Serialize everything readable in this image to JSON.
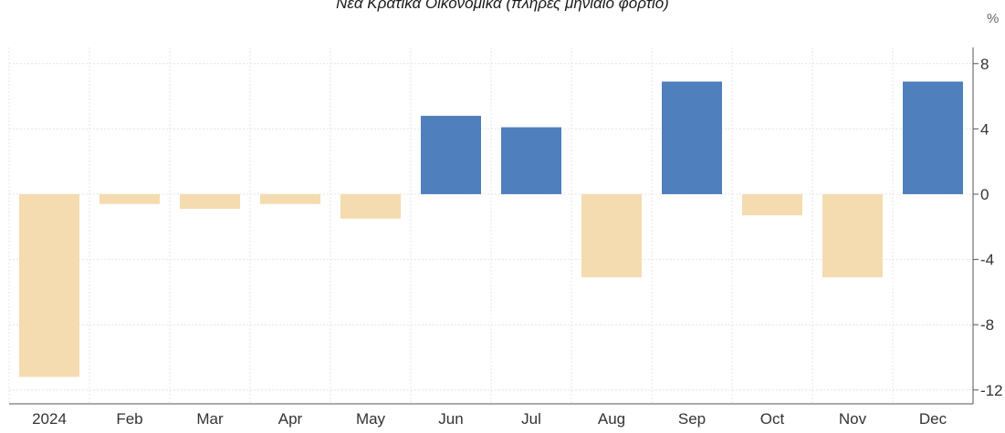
{
  "chart_data": {
    "type": "bar",
    "title": "Νέα Κρατικά Οικονομικά (πλήρες μηνιαίο φορτίο)",
    "unit": "%",
    "categories": [
      "2024",
      "Feb",
      "Mar",
      "Apr",
      "May",
      "Jun",
      "Jul",
      "Aug",
      "Sep",
      "Oct",
      "Nov",
      "Dec"
    ],
    "values": [
      -11.2,
      -0.6,
      -0.9,
      -0.6,
      -1.5,
      4.8,
      4.1,
      -5.1,
      6.9,
      -1.3,
      -5.1,
      6.9
    ],
    "xlabel": "",
    "ylabel": "",
    "ylim": [
      -12.8,
      8.8
    ],
    "yticks": [
      8,
      4,
      0,
      -4,
      -8,
      -12
    ],
    "grid": true,
    "colors": {
      "positive": "#4f7fbc",
      "negative": "#f4dcb0",
      "grid": "#e4e4e4",
      "axis": "#555555"
    }
  }
}
